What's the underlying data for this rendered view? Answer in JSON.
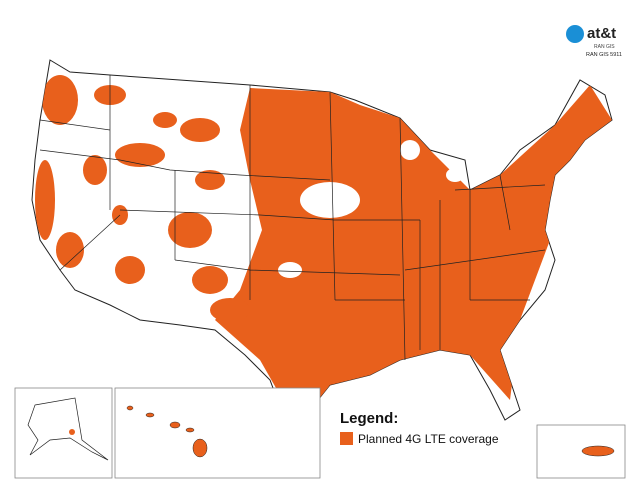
{
  "logo": {
    "brand": "at&t",
    "subtitle": "RAN GIS",
    "code": "RAN GIS 5911"
  },
  "legend": {
    "title": "Legend:",
    "items": [
      {
        "label": "Planned 4G LTE coverage",
        "color": "#e8601c"
      }
    ]
  }
}
